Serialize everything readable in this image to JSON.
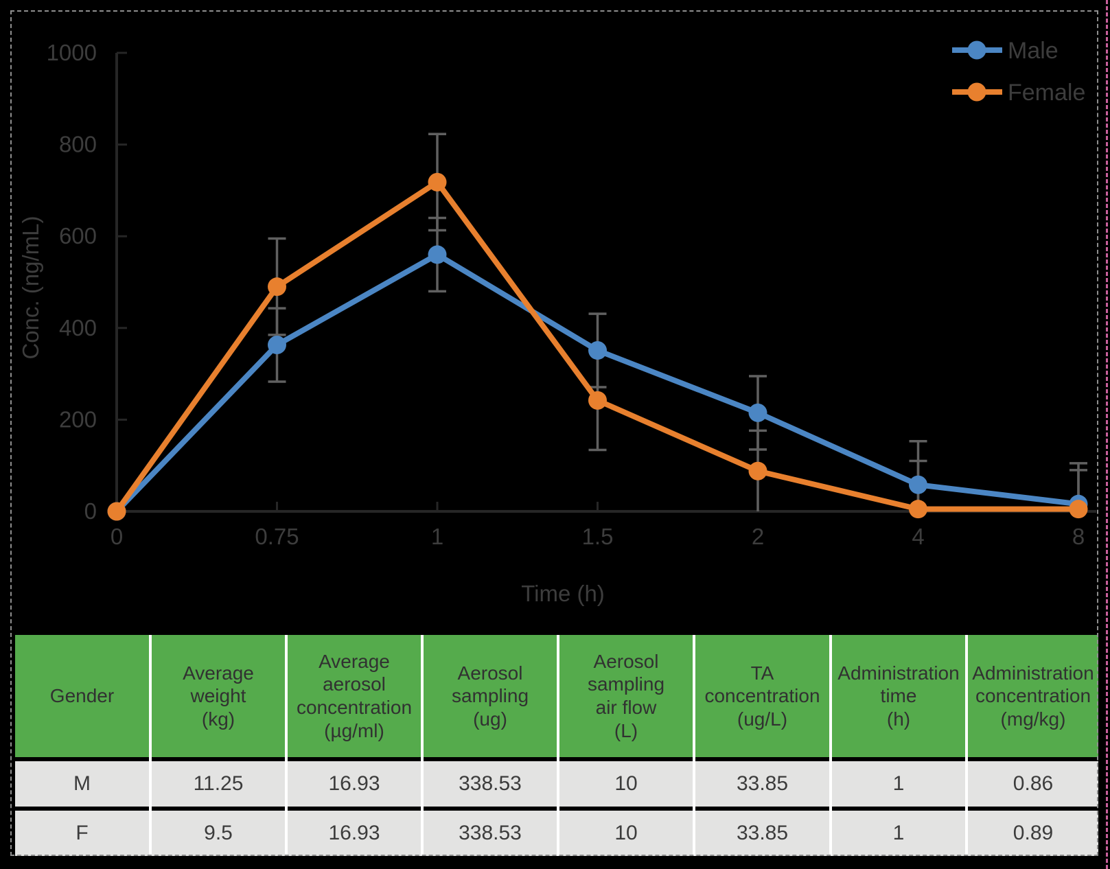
{
  "frame": {
    "border_color": "#8f8f8f",
    "edge_line_color": "#c9609c",
    "background": "#000000"
  },
  "chart_data": {
    "type": "line",
    "title": "",
    "xlabel": "Time (h)",
    "ylabel": "Conc. (ng/mL)",
    "categories": [
      "0",
      "0.75",
      "1",
      "1.5",
      "2",
      "4",
      "8"
    ],
    "y_ticks": [
      0,
      200,
      400,
      600,
      800,
      1000
    ],
    "ylim": [
      0,
      1000
    ],
    "grid": false,
    "legend_position": "top-right",
    "axis_color": "#262626",
    "error_bar_color": "#606060",
    "text_color": "#3d3d3d",
    "series": [
      {
        "name": "Male",
        "color": "#4B86C4",
        "values": [
          0,
          363,
          560,
          351,
          215,
          58,
          16
        ],
        "error": [
          0,
          80,
          80,
          80,
          80,
          95,
          89
        ]
      },
      {
        "name": "Female",
        "color": "#E8802E",
        "values": [
          0,
          490,
          718,
          242,
          88,
          5,
          5
        ],
        "error": [
          0,
          105,
          105,
          108,
          88,
          105,
          85
        ]
      }
    ]
  },
  "table": {
    "header_bg": "#55AB4C",
    "row_bg": "#E3E3E2",
    "columns": [
      "Gender",
      "Average\nweight\n(kg)",
      "Average\naerosol\nconcentration\n(µg/ml)",
      "Aerosol\nsampling\n(ug)",
      "Aerosol\nsampling\nair flow\n(L)",
      "TA\nconcentration\n(ug/L)",
      "Administration\ntime\n(h)",
      "Administration\nconcentration\n(mg/kg)"
    ],
    "rows": [
      [
        "M",
        "11.25",
        "16.93",
        "338.53",
        "10",
        "33.85",
        "1",
        "0.86"
      ],
      [
        "F",
        "9.5",
        "16.93",
        "338.53",
        "10",
        "33.85",
        "1",
        "0.89"
      ]
    ]
  }
}
